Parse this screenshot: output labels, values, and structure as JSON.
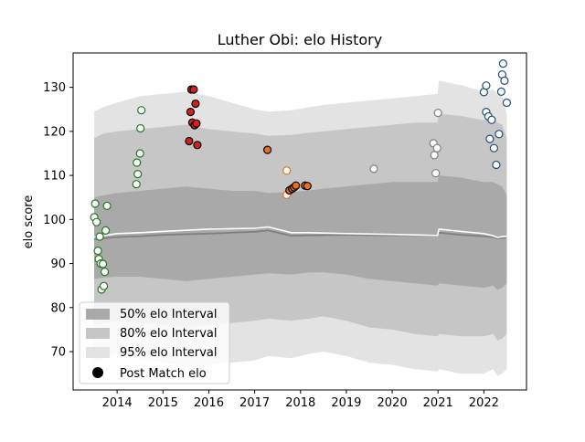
{
  "chart_data": {
    "type": "scatter",
    "title": "Luther Obi: elo History",
    "xlabel": "",
    "ylabel": "elo score",
    "xlim": [
      2013.04,
      2022.93
    ],
    "ylim": [
      61.3,
      137.8
    ],
    "x_ticks": [
      2014,
      2015,
      2016,
      2017,
      2018,
      2019,
      2020,
      2021,
      2022
    ],
    "y_ticks": [
      70,
      80,
      90,
      100,
      110,
      120,
      130
    ],
    "grid": false,
    "legend_position": "lower-left",
    "legend": {
      "band50_label": "50% elo Interval",
      "band80_label": "80% elo Interval",
      "band95_label": "95% elo Interval",
      "points_label": "Post Match elo"
    },
    "band_colors": {
      "band50": "#a9a9a9",
      "band80": "#c6c6c6",
      "band95": "#e3e3e3"
    },
    "bands": {
      "x": [
        2013.5,
        2013.7,
        2014.0,
        2014.5,
        2015.0,
        2015.5,
        2016.0,
        2016.5,
        2017.0,
        2017.3,
        2017.8,
        2018.2,
        2018.5,
        2019.0,
        2019.5,
        2020.0,
        2020.5,
        2020.99,
        2021.02,
        2021.5,
        2022.0,
        2022.2,
        2022.3,
        2022.4,
        2022.5
      ],
      "p95_upper": [
        124.5,
        125.5,
        126.5,
        128.0,
        128.5,
        129.0,
        128.0,
        126.5,
        125.0,
        124.5,
        124.8,
        125.5,
        126.0,
        126.5,
        127.0,
        127.5,
        128.0,
        128.5,
        131.5,
        130.5,
        129.0,
        129.5,
        128.5,
        128.0,
        124.0
      ],
      "p95_lower": [
        67.5,
        68.5,
        69.5,
        68.5,
        67.5,
        66.5,
        67.0,
        67.5,
        68.0,
        69.0,
        68.5,
        69.5,
        70.0,
        69.0,
        67.5,
        67.0,
        66.0,
        65.5,
        66.0,
        65.0,
        65.0,
        66.0,
        64.5,
        65.0,
        66.0
      ],
      "p80_upper": [
        118.5,
        119.5,
        120.0,
        120.5,
        121.0,
        121.5,
        120.5,
        120.0,
        119.5,
        119.0,
        119.2,
        119.7,
        120.0,
        120.5,
        121.0,
        121.5,
        122.0,
        122.0,
        124.0,
        123.5,
        122.5,
        123.0,
        122.0,
        121.5,
        118.5
      ],
      "p80_lower": [
        76.0,
        76.5,
        77.0,
        76.5,
        76.0,
        75.5,
        76.0,
        76.5,
        77.0,
        77.5,
        77.0,
        77.5,
        78.0,
        77.0,
        75.5,
        75.0,
        74.0,
        73.5,
        74.0,
        73.5,
        73.5,
        74.0,
        72.5,
        73.0,
        74.0
      ],
      "p50_upper": [
        105.0,
        105.5,
        106.0,
        106.5,
        107.0,
        107.5,
        107.0,
        106.5,
        106.5,
        106.0,
        106.2,
        106.6,
        107.0,
        107.5,
        108.0,
        108.5,
        108.5,
        108.5,
        110.0,
        109.5,
        108.5,
        108.5,
        108.0,
        107.5,
        105.5
      ],
      "p50_lower": [
        86.5,
        86.8,
        87.0,
        87.0,
        86.5,
        86.0,
        86.5,
        87.0,
        87.5,
        87.8,
        87.5,
        88.0,
        88.0,
        87.5,
        86.5,
        86.0,
        85.5,
        85.0,
        85.5,
        85.0,
        84.5,
        85.0,
        84.0,
        84.5,
        85.5
      ]
    },
    "median": {
      "x": [
        2013.5,
        2014.0,
        2014.5,
        2015.0,
        2016.0,
        2017.0,
        2017.3,
        2017.8,
        2018.2,
        2019.0,
        2020.0,
        2020.99,
        2021.02,
        2021.5,
        2022.0,
        2022.2,
        2022.3,
        2022.4,
        2022.5
      ],
      "y": [
        95.5,
        96.0,
        96.2,
        96.5,
        96.8,
        97.2,
        97.5,
        96.3,
        96.4,
        96.5,
        96.4,
        96.5,
        97.0,
        96.5,
        96.2,
        96.0,
        95.7,
        95.8,
        95.9
      ],
      "color": "#808080"
    },
    "alt_line": {
      "x": [
        2013.5,
        2014.0,
        2014.5,
        2015.0,
        2016.0,
        2017.0,
        2017.3,
        2017.8,
        2018.2,
        2019.0,
        2020.0,
        2020.99,
        2021.02,
        2021.5,
        2022.0,
        2022.2,
        2022.3,
        2022.4,
        2022.5
      ],
      "y": [
        96.0,
        96.8,
        97.0,
        97.3,
        97.8,
        98.0,
        98.3,
        97.0,
        97.0,
        96.8,
        96.6,
        96.4,
        97.8,
        97.3,
        96.8,
        96.3,
        95.9,
        96.1,
        96.2
      ],
      "color": "#ffffff"
    },
    "series": [
      {
        "color": "#1f7a1f",
        "fill": "#ffffff",
        "points": [
          [
            2013.5,
            100.5
          ],
          [
            2013.52,
            103.6
          ],
          [
            2013.55,
            99.4
          ],
          [
            2013.58,
            92.9
          ],
          [
            2013.6,
            91.0
          ],
          [
            2013.62,
            96.1
          ],
          [
            2013.64,
            90.0
          ],
          [
            2013.66,
            84.1
          ],
          [
            2013.69,
            89.9
          ],
          [
            2013.71,
            84.9
          ],
          [
            2013.73,
            88.1
          ],
          [
            2013.75,
            97.5
          ],
          [
            2013.78,
            103.1
          ],
          [
            2014.42,
            108.0
          ],
          [
            2014.43,
            112.9
          ],
          [
            2014.45,
            110.3
          ],
          [
            2014.5,
            115.0
          ],
          [
            2014.51,
            120.7
          ],
          [
            2014.53,
            124.8
          ]
        ]
      },
      {
        "color": "#000000",
        "fill": "#d62020",
        "points": [
          [
            2015.57,
            117.8
          ],
          [
            2015.6,
            124.4
          ],
          [
            2015.62,
            129.5
          ],
          [
            2015.64,
            122.0
          ],
          [
            2015.67,
            129.5
          ],
          [
            2015.69,
            121.4
          ],
          [
            2015.71,
            126.3
          ],
          [
            2015.73,
            121.8
          ],
          [
            2015.75,
            116.9
          ]
        ]
      },
      {
        "color": "#000000",
        "fill": "#e8701a",
        "points": [
          [
            2017.28,
            115.8
          ]
        ]
      },
      {
        "color": "#e8701a",
        "fill": "#ffffff",
        "points": [
          [
            2017.7,
            111.1
          ],
          [
            2017.7,
            105.6
          ]
        ]
      },
      {
        "color": "#000000",
        "fill": "#e8701a",
        "points": [
          [
            2017.76,
            106.6
          ],
          [
            2017.82,
            107.0
          ],
          [
            2017.86,
            107.3
          ],
          [
            2017.9,
            107.7
          ],
          [
            2018.1,
            107.7
          ],
          [
            2018.15,
            107.6
          ]
        ]
      },
      {
        "color": "#808080",
        "fill": "#ffffff",
        "points": [
          [
            2019.6,
            111.5
          ],
          [
            2020.9,
            117.3
          ],
          [
            2020.92,
            114.6
          ],
          [
            2020.95,
            110.5
          ],
          [
            2020.98,
            116.2
          ],
          [
            2021.0,
            124.2
          ]
        ]
      },
      {
        "color": "#1f4e79",
        "fill": "#ffffff",
        "points": [
          [
            2022.0,
            128.9
          ],
          [
            2022.05,
            130.4
          ],
          [
            2022.05,
            124.4
          ],
          [
            2022.1,
            123.4
          ],
          [
            2022.13,
            118.3
          ],
          [
            2022.17,
            122.6
          ],
          [
            2022.22,
            116.2
          ],
          [
            2022.27,
            112.4
          ],
          [
            2022.33,
            119.4
          ],
          [
            2022.38,
            129.0
          ],
          [
            2022.4,
            132.9
          ],
          [
            2022.42,
            135.4
          ],
          [
            2022.45,
            131.5
          ],
          [
            2022.5,
            126.5
          ]
        ]
      }
    ]
  }
}
